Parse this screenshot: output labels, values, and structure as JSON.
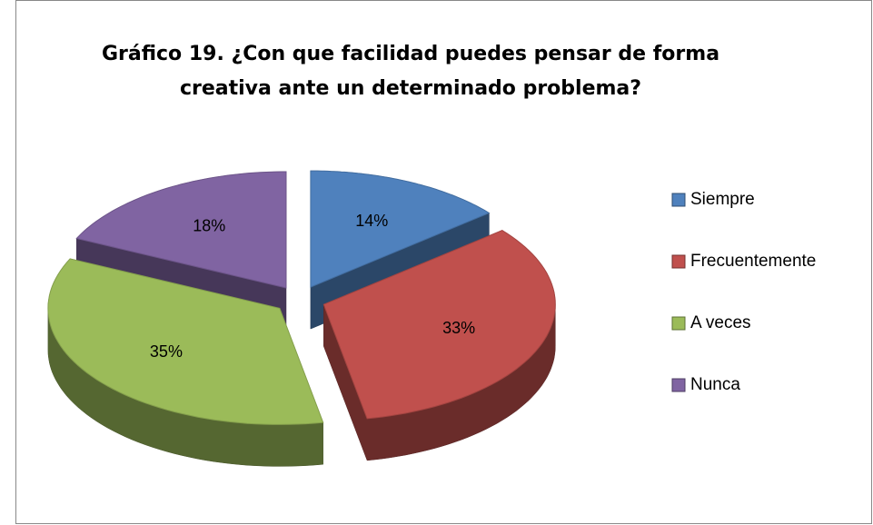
{
  "chart_data": {
    "type": "pie3d",
    "title": [
      "Gráfico 19.  ¿Con que facilidad puedes pensar de forma",
      "creativa ante un determinado problema?"
    ],
    "categories": [
      "Siempre",
      "Frecuentemente",
      "A veces",
      "Nunca"
    ],
    "values": [
      14,
      33,
      35,
      18
    ],
    "value_labels": [
      "14%",
      "33%",
      "35%",
      "18%"
    ],
    "colors": [
      "#4f81bd",
      "#c0504d",
      "#9bbb59",
      "#8064a2"
    ],
    "legend": "right"
  }
}
